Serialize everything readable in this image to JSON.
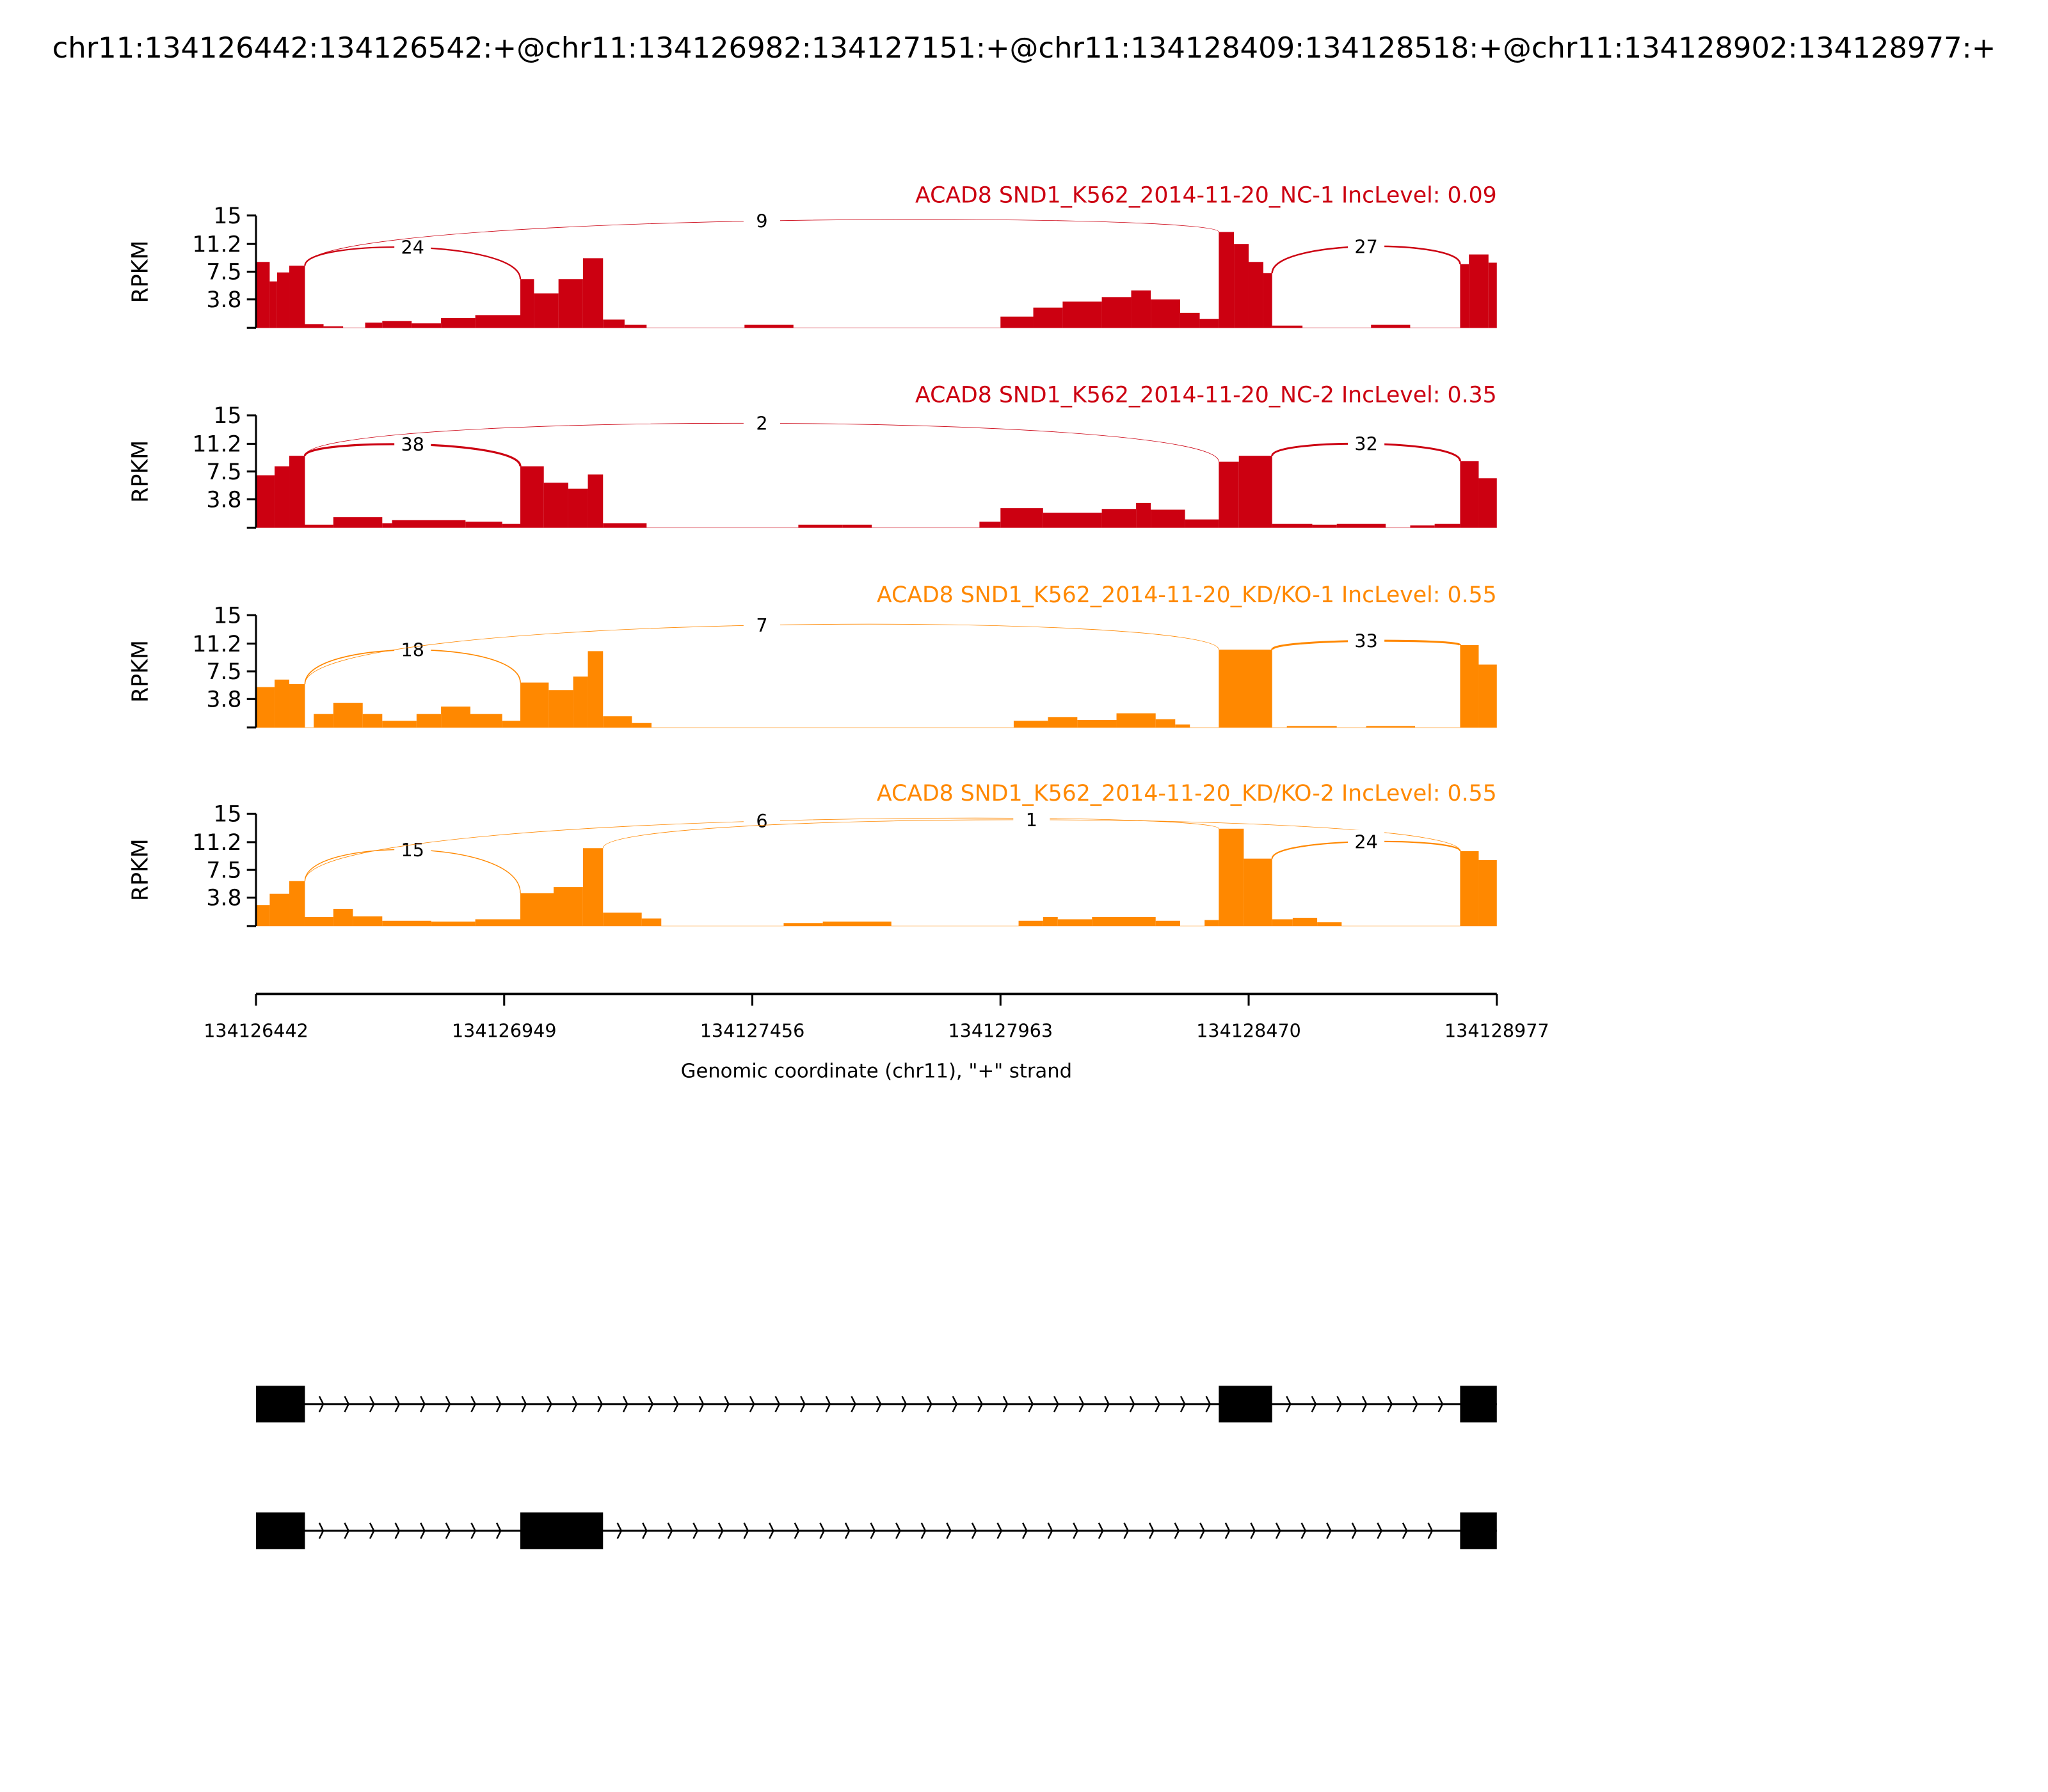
{
  "chart_data": {
    "type": "area",
    "title": "chr11:134126442:134126542:+@chr11:134126982:134127151:+@chr11:134128409:134128518:+@chr11:134128902:134128977:+",
    "xlabel": "Genomic coordinate (chr11), \"+\" strand",
    "ylabel": "RPKM",
    "xlim": [
      134126442,
      134128977
    ],
    "ylim": [
      0,
      15
    ],
    "xticks": [
      "134126442",
      "134126949",
      "134127456",
      "134127963",
      "134128470",
      "134128977"
    ],
    "yticks": [
      "15",
      "11.2",
      "7.5",
      "3.8"
    ],
    "samples": [
      {
        "label": "ACAD8 SND1_K562_2014-11-20_NC-1 IncLevel: 0.09",
        "color": "#cc0011",
        "coverage": [
          [
            134126442,
            134126470,
            8.8
          ],
          [
            134126470,
            134126485,
            6.2
          ],
          [
            134126485,
            134126510,
            7.4
          ],
          [
            134126510,
            134126542,
            8.3
          ],
          [
            134126542,
            134126580,
            0.5
          ],
          [
            134126580,
            134126620,
            0.2
          ],
          [
            134126665,
            134126700,
            0.7
          ],
          [
            134126700,
            134126760,
            0.9
          ],
          [
            134126760,
            134126820,
            0.6
          ],
          [
            134126820,
            134126890,
            1.3
          ],
          [
            134126890,
            134126982,
            1.7
          ],
          [
            134126982,
            134127010,
            6.5
          ],
          [
            134127010,
            134127060,
            4.6
          ],
          [
            134127060,
            134127110,
            6.5
          ],
          [
            134127110,
            134127151,
            9.3
          ],
          [
            134127151,
            134127195,
            1.1
          ],
          [
            134127195,
            134127240,
            0.4
          ],
          [
            134127440,
            134127540,
            0.4
          ],
          [
            134127963,
            134128030,
            1.5
          ],
          [
            134128030,
            134128090,
            2.7
          ],
          [
            134128090,
            134128170,
            3.5
          ],
          [
            134128170,
            134128230,
            4.1
          ],
          [
            134128230,
            134128270,
            5.0
          ],
          [
            134128270,
            134128330,
            3.8
          ],
          [
            134128330,
            134128370,
            2.0
          ],
          [
            134128370,
            134128409,
            1.2
          ],
          [
            134128409,
            134128440,
            12.8
          ],
          [
            134128440,
            134128470,
            11.2
          ],
          [
            134128470,
            134128500,
            8.8
          ],
          [
            134128500,
            134128518,
            7.3
          ],
          [
            134128518,
            134128580,
            0.3
          ],
          [
            134128720,
            134128800,
            0.4
          ],
          [
            134128902,
            134128920,
            8.5
          ],
          [
            134128920,
            134128960,
            9.8
          ],
          [
            134128960,
            134128977,
            8.7
          ]
        ],
        "junctions": [
          {
            "from": 134126542,
            "to": 134126982,
            "count": "24"
          },
          {
            "from": 134126542,
            "to": 134128409,
            "count": "9"
          },
          {
            "from": 134128518,
            "to": 134128902,
            "count": "27"
          }
        ]
      },
      {
        "label": "ACAD8 SND1_K562_2014-11-20_NC-2 IncLevel: 0.35",
        "color": "#cc0011",
        "coverage": [
          [
            134126442,
            134126480,
            7.0
          ],
          [
            134126480,
            134126510,
            8.2
          ],
          [
            134126510,
            134126542,
            9.6
          ],
          [
            134126542,
            134126600,
            0.4
          ],
          [
            134126600,
            134126700,
            1.4
          ],
          [
            134126700,
            134126720,
            0.6
          ],
          [
            134126720,
            134126870,
            1.0
          ],
          [
            134126870,
            134126945,
            0.8
          ],
          [
            134126945,
            134126982,
            0.5
          ],
          [
            134126982,
            134127030,
            8.2
          ],
          [
            134127030,
            134127080,
            6.0
          ],
          [
            134127080,
            134127120,
            5.2
          ],
          [
            134127120,
            134127151,
            7.1
          ],
          [
            134127151,
            134127240,
            0.6
          ],
          [
            134127550,
            134127640,
            0.4
          ],
          [
            134127640,
            134127700,
            0.4
          ],
          [
            134127920,
            134127963,
            0.8
          ],
          [
            134127963,
            134128050,
            2.6
          ],
          [
            134128050,
            134128170,
            2.0
          ],
          [
            134128170,
            134128240,
            2.5
          ],
          [
            134128240,
            134128270,
            3.3
          ],
          [
            134128270,
            134128340,
            2.4
          ],
          [
            134128340,
            134128409,
            1.1
          ],
          [
            134128409,
            134128450,
            8.8
          ],
          [
            134128450,
            134128518,
            9.6
          ],
          [
            134128518,
            134128600,
            0.5
          ],
          [
            134128600,
            134128650,
            0.4
          ],
          [
            134128650,
            134128750,
            0.5
          ],
          [
            134128800,
            134128850,
            0.3
          ],
          [
            134128850,
            134128902,
            0.5
          ],
          [
            134128902,
            134128940,
            8.9
          ],
          [
            134128940,
            134128977,
            6.6
          ]
        ],
        "junctions": [
          {
            "from": 134126542,
            "to": 134126982,
            "count": "38"
          },
          {
            "from": 134126542,
            "to": 134128409,
            "count": "2"
          },
          {
            "from": 134128518,
            "to": 134128902,
            "count": "32"
          }
        ]
      },
      {
        "label": "ACAD8 SND1_K562_2014-11-20_KD/KO-1 IncLevel: 0.55",
        "color": "#ff8800",
        "coverage": [
          [
            134126442,
            134126480,
            5.4
          ],
          [
            134126480,
            134126510,
            6.4
          ],
          [
            134126510,
            134126542,
            5.8
          ],
          [
            134126560,
            134126600,
            1.8
          ],
          [
            134126600,
            134126660,
            3.3
          ],
          [
            134126660,
            134126700,
            1.8
          ],
          [
            134126700,
            134126770,
            0.9
          ],
          [
            134126770,
            134126820,
            1.8
          ],
          [
            134126820,
            134126880,
            2.8
          ],
          [
            134126880,
            134126945,
            1.8
          ],
          [
            134126945,
            134126982,
            0.9
          ],
          [
            134126982,
            134127040,
            6.0
          ],
          [
            134127040,
            134127090,
            5.0
          ],
          [
            134127090,
            134127120,
            6.8
          ],
          [
            134127120,
            134127151,
            10.2
          ],
          [
            134127151,
            134127210,
            1.5
          ],
          [
            134127210,
            134127250,
            0.6
          ],
          [
            134127990,
            134128060,
            0.9
          ],
          [
            134128060,
            134128120,
            1.4
          ],
          [
            134128120,
            134128200,
            1.0
          ],
          [
            134128200,
            134128280,
            1.9
          ],
          [
            134128280,
            134128320,
            1.1
          ],
          [
            134128320,
            134128350,
            0.4
          ],
          [
            134128409,
            134128518,
            10.4
          ],
          [
            134128548,
            134128650,
            0.2
          ],
          [
            134128710,
            134128810,
            0.2
          ],
          [
            134128902,
            134128940,
            11.0
          ],
          [
            134128940,
            134128977,
            8.4
          ]
        ],
        "junctions": [
          {
            "from": 134126542,
            "to": 134126982,
            "count": "18"
          },
          {
            "from": 134126542,
            "to": 134128409,
            "count": "7"
          },
          {
            "from": 134128518,
            "to": 134128902,
            "count": "33"
          }
        ]
      },
      {
        "label": "ACAD8 SND1_K562_2014-11-20_KD/KO-2 IncLevel: 0.55",
        "color": "#ff8800",
        "coverage": [
          [
            134126442,
            134126470,
            2.8
          ],
          [
            134126470,
            134126510,
            4.3
          ],
          [
            134126510,
            134126542,
            6.0
          ],
          [
            134126542,
            134126600,
            1.2
          ],
          [
            134126600,
            134126640,
            2.3
          ],
          [
            134126640,
            134126700,
            1.3
          ],
          [
            134126700,
            134126800,
            0.7
          ],
          [
            134126800,
            134126890,
            0.6
          ],
          [
            134126890,
            134126982,
            0.9
          ],
          [
            134126982,
            134127050,
            4.4
          ],
          [
            134127050,
            134127110,
            5.2
          ],
          [
            134127110,
            134127151,
            10.4
          ],
          [
            134127151,
            134127230,
            1.8
          ],
          [
            134127230,
            134127270,
            1.0
          ],
          [
            134127520,
            134127600,
            0.4
          ],
          [
            134127600,
            134127740,
            0.6
          ],
          [
            134128000,
            134128050,
            0.7
          ],
          [
            134128050,
            134128080,
            1.2
          ],
          [
            134128080,
            134128150,
            0.9
          ],
          [
            134128150,
            134128280,
            1.2
          ],
          [
            134128280,
            134128330,
            0.7
          ],
          [
            134128380,
            134128409,
            0.8
          ],
          [
            134128409,
            134128460,
            13.0
          ],
          [
            134128460,
            134128518,
            9.0
          ],
          [
            134128518,
            134128560,
            0.9
          ],
          [
            134128560,
            134128610,
            1.1
          ],
          [
            134128610,
            134128660,
            0.5
          ],
          [
            134128902,
            134128940,
            10.0
          ],
          [
            134128940,
            134128977,
            8.8
          ]
        ],
        "junctions": [
          {
            "from": 134126542,
            "to": 134126982,
            "count": "15"
          },
          {
            "from": 134126542,
            "to": 134128409,
            "count": "6"
          },
          {
            "from": 134127151,
            "to": 134128902,
            "count": "1"
          },
          {
            "from": 134128518,
            "to": 134128902,
            "count": "24"
          }
        ]
      }
    ],
    "gene_models": [
      {
        "exons": [
          [
            134126442,
            134126542
          ],
          [
            134128409,
            134128518
          ],
          [
            134128902,
            134128977
          ]
        ]
      },
      {
        "exons": [
          [
            134126442,
            134126542
          ],
          [
            134126982,
            134127151
          ],
          [
            134128902,
            134128977
          ]
        ]
      }
    ]
  }
}
